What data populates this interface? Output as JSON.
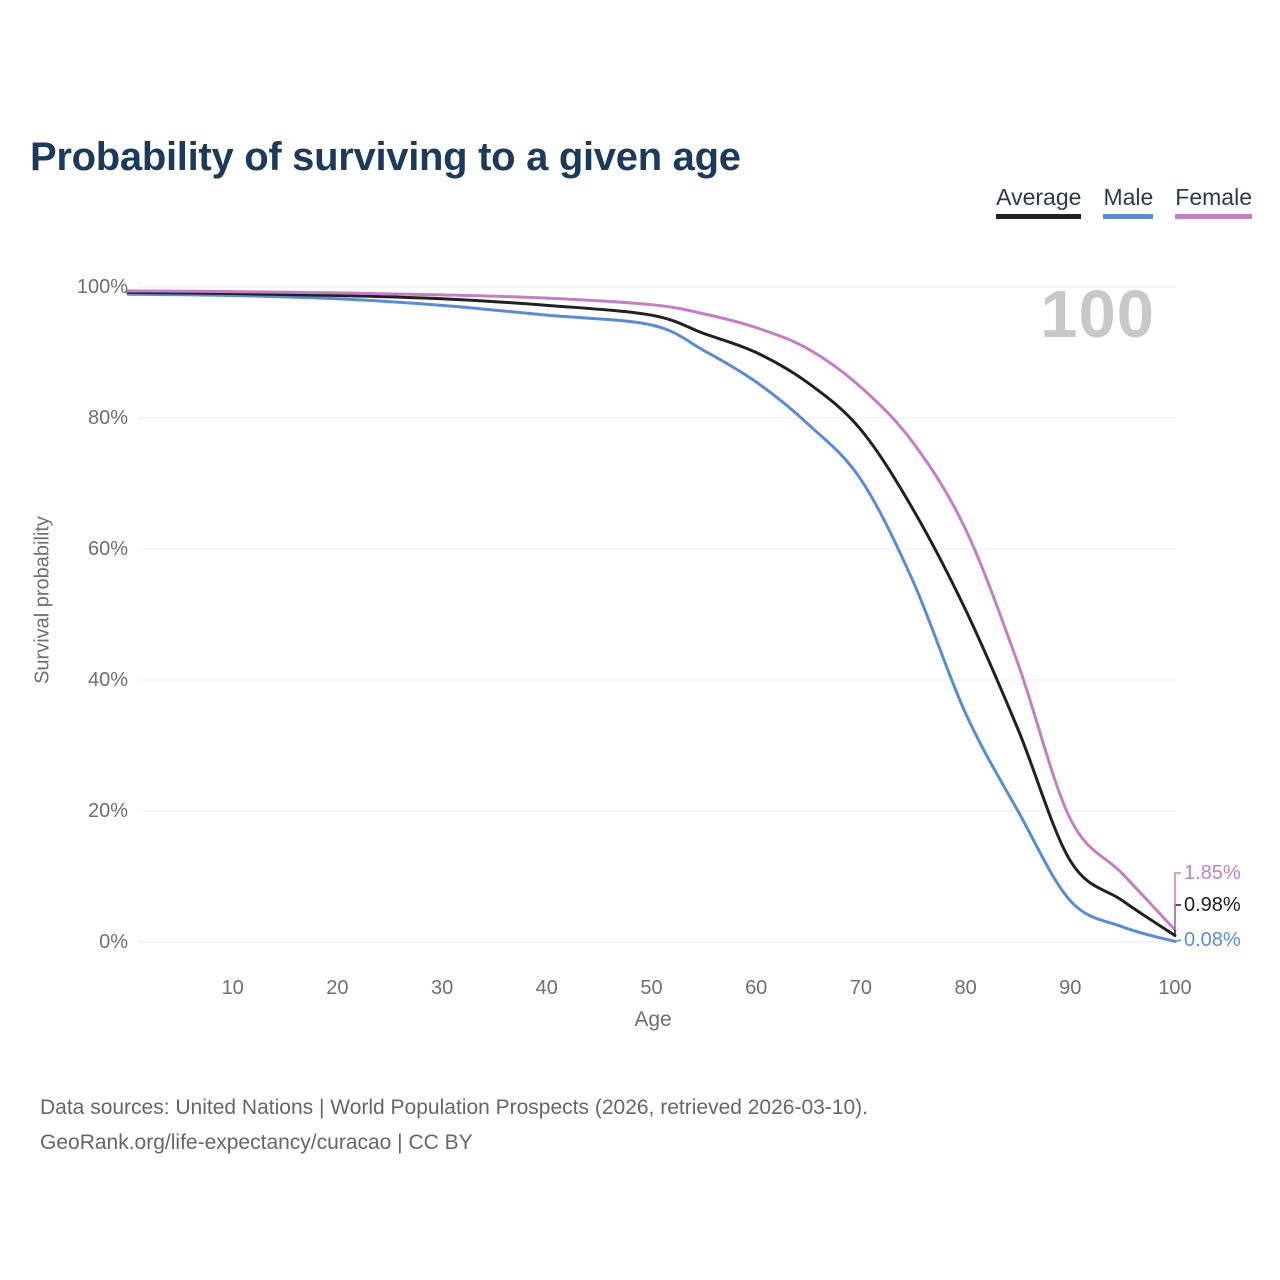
{
  "header": {
    "title": "Probability of surviving to a given age"
  },
  "legend": {
    "items": [
      {
        "label": "Average",
        "color": "#212121"
      },
      {
        "label": "Male",
        "color": "#5b8bd0"
      },
      {
        "label": "Female",
        "color": "#c27fc2"
      }
    ]
  },
  "chart_data": {
    "type": "line",
    "title": "Probability of surviving to a given age",
    "xlabel": "Age",
    "ylabel": "Survival probability",
    "watermark": "100",
    "x": [
      0,
      10,
      20,
      30,
      40,
      50,
      55,
      60,
      65,
      70,
      75,
      80,
      85,
      90,
      95,
      100
    ],
    "series": [
      {
        "name": "Average",
        "color": "#212121",
        "end_label": "0.98%",
        "end_value": 0.98,
        "values": [
          99.2,
          99.0,
          98.7,
          98.2,
          97.2,
          95.7,
          92.9,
          90.0,
          85.3,
          78.2,
          66.0,
          50.7,
          32.5,
          12.4,
          6.3,
          0.98
        ]
      },
      {
        "name": "Male",
        "color": "#5b8bd0",
        "end_label": "0.08%",
        "end_value": 0.08,
        "values": [
          98.9,
          98.7,
          98.2,
          97.2,
          95.7,
          94.2,
          90.3,
          85.5,
          79.0,
          70.6,
          55.0,
          34.9,
          20.0,
          6.3,
          2.3,
          0.08
        ]
      },
      {
        "name": "Female",
        "color": "#c27fc2",
        "end_label": "1.85%",
        "end_value": 1.85,
        "values": [
          99.4,
          99.3,
          99.1,
          98.8,
          98.3,
          97.3,
          95.9,
          93.8,
          90.5,
          84.7,
          76.2,
          63.0,
          42.5,
          18.8,
          10.4,
          1.85
        ]
      }
    ],
    "xticks": [
      10,
      20,
      30,
      40,
      50,
      60,
      70,
      80,
      90,
      100
    ],
    "yticks": [
      "0%",
      "20%",
      "40%",
      "60%",
      "80%",
      "100%"
    ],
    "ylim": [
      0,
      100
    ],
    "xlim": [
      0,
      100
    ],
    "grid": "horizontal",
    "legend_position": "top-right",
    "gridline_color": "#ececec"
  },
  "footer": {
    "line1": "Data sources: United Nations | World Population Prospects (2026, retrieved 2026-03-10).",
    "line2": "GeoRank.org/life-expectancy/curacao | CC BY"
  }
}
